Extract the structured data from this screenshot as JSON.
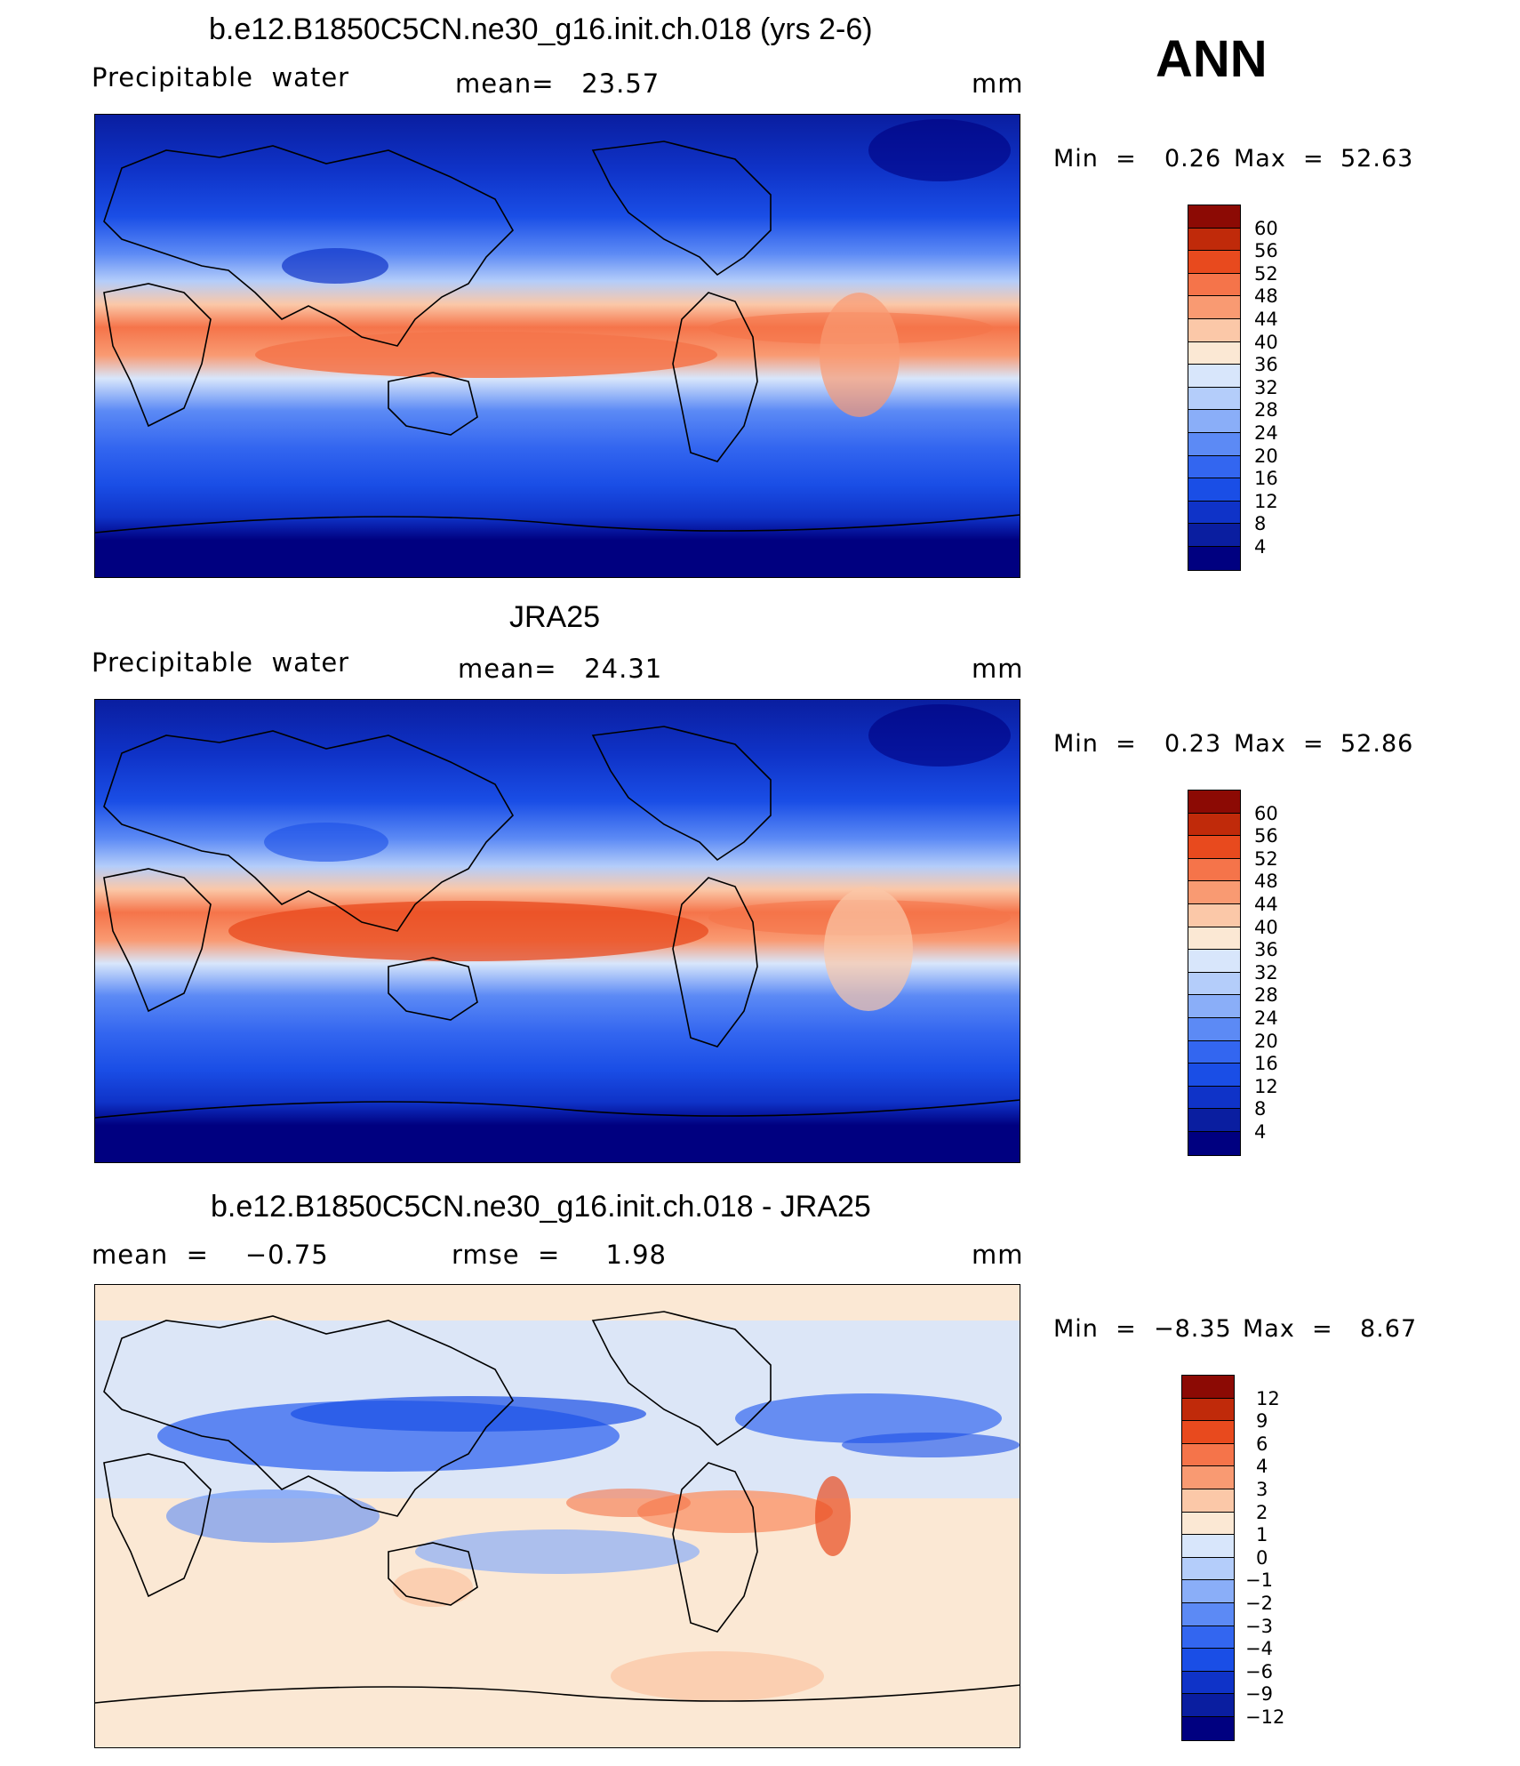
{
  "season": "ANN",
  "panels": [
    {
      "title": "b.e12.B1850C5CN.ne30_g16.init.ch.018 (yrs 2-6)",
      "variable": "Precipitable  water",
      "stat1": "mean=   23.57",
      "units": "mm",
      "min_label": "Min  =",
      "min_value": "0.26",
      "max_label": "Max  =",
      "max_value": "52.63"
    },
    {
      "title": "JRA25",
      "variable": "Precipitable  water",
      "stat1": "mean=   24.31",
      "units": "mm",
      "min_label": "Min  =",
      "min_value": "0.23",
      "max_label": "Max  =",
      "max_value": "52.86"
    },
    {
      "title": "b.e12.B1850C5CN.ne30_g16.init.ch.018 - JRA25",
      "stat0": "mean  =    −0.75",
      "stat1": "rmse  =     1.98",
      "units": "mm",
      "min_label": "Min  =",
      "min_value": "−8.35",
      "max_label": "Max  =",
      "max_value": "8.67"
    }
  ],
  "chart_data": [
    {
      "type": "heatmap",
      "title": "b.e12.B1850C5CN.ne30_g16.init.ch.018 (yrs 2-6)",
      "variable": "Precipitable water",
      "units": "mm",
      "mean": 23.57,
      "min": 0.26,
      "max": 52.63,
      "colorbar_levels": [
        4,
        8,
        12,
        16,
        20,
        24,
        28,
        32,
        36,
        40,
        44,
        48,
        52,
        56,
        60
      ],
      "colors": [
        "#000080",
        "#0a1ea0",
        "#0f33c8",
        "#1a4ee6",
        "#3366f0",
        "#5c8af5",
        "#8aaef8",
        "#b4cdfa",
        "#d8e6fb",
        "#fbe8d4",
        "#fbc8a8",
        "#f99a72",
        "#f5744a",
        "#e84a1e",
        "#c02a0a",
        "#8c0a04"
      ]
    },
    {
      "type": "heatmap",
      "title": "JRA25",
      "variable": "Precipitable water",
      "units": "mm",
      "mean": 24.31,
      "min": 0.23,
      "max": 52.86,
      "colorbar_levels": [
        4,
        8,
        12,
        16,
        20,
        24,
        28,
        32,
        36,
        40,
        44,
        48,
        52,
        56,
        60
      ],
      "colors": [
        "#000080",
        "#0a1ea0",
        "#0f33c8",
        "#1a4ee6",
        "#3366f0",
        "#5c8af5",
        "#8aaef8",
        "#b4cdfa",
        "#d8e6fb",
        "#fbe8d4",
        "#fbc8a8",
        "#f99a72",
        "#f5744a",
        "#e84a1e",
        "#c02a0a",
        "#8c0a04"
      ]
    },
    {
      "type": "heatmap",
      "title": "b.e12.B1850C5CN.ne30_g16.init.ch.018 - JRA25",
      "units": "mm",
      "mean": -0.75,
      "rmse": 1.98,
      "min": -8.35,
      "max": 8.67,
      "colorbar_levels": [
        -12,
        -9,
        -6,
        -4,
        -3,
        -2,
        -1,
        0,
        1,
        2,
        3,
        4,
        6,
        9,
        12
      ],
      "colors": [
        "#000080",
        "#0a1ea0",
        "#0f33c8",
        "#1a4ee6",
        "#3366f0",
        "#5c8af5",
        "#8aaef8",
        "#b4cdfa",
        "#d8e6fb",
        "#fbe8d4",
        "#fbc8a8",
        "#f99a72",
        "#f5744a",
        "#e84a1e",
        "#c02a0a",
        "#8c0a04"
      ]
    }
  ]
}
